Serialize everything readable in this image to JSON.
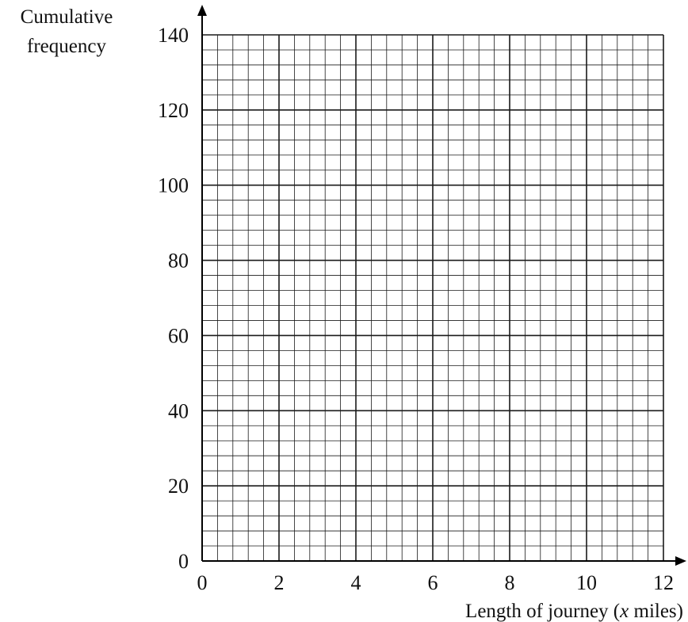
{
  "chart_data": {
    "type": "line",
    "xlabel": "Length of journey (x miles)",
    "ylabel": [
      "Cumulative",
      "frequency"
    ],
    "xlim": [
      0,
      12
    ],
    "ylim": [
      0,
      140
    ],
    "x_ticks": [
      "0",
      "2",
      "4",
      "6",
      "8",
      "10",
      "12"
    ],
    "y_ticks": [
      "0",
      "20",
      "40",
      "60",
      "80",
      "100",
      "120",
      "140"
    ],
    "grid": true,
    "minor_x_step": 0.4,
    "minor_y_step": 4,
    "series": []
  }
}
